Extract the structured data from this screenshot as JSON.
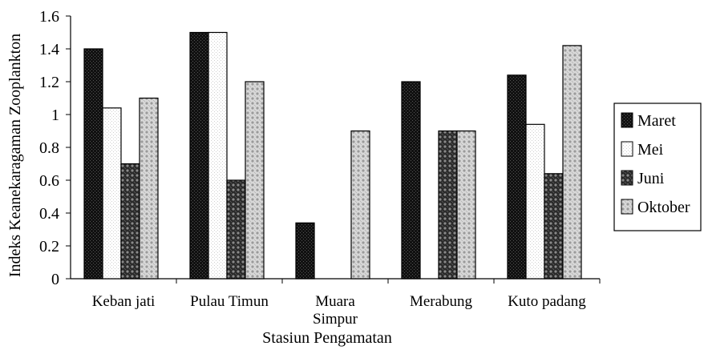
{
  "chart_data": {
    "type": "bar",
    "title": "",
    "xlabel": "Stasiun Pengamatan",
    "ylabel": "Indeks Keanekaragaman Zooplankton",
    "ylim": [
      0,
      1.6
    ],
    "yticks": [
      "0",
      "0.2",
      "0.4",
      "0.6",
      "0.8",
      "1",
      "1.2",
      "1.4",
      "1.6"
    ],
    "categories": [
      [
        "Keban jati"
      ],
      [
        "Pulau Timun"
      ],
      [
        "Muara",
        "Simpur"
      ],
      [
        "Merabung"
      ],
      [
        "Kuto padang"
      ]
    ],
    "series": [
      {
        "name": "Maret",
        "values": [
          1.4,
          1.5,
          0.34,
          1.2,
          1.24
        ]
      },
      {
        "name": "Mei",
        "values": [
          1.04,
          1.5,
          0,
          0,
          0.94
        ]
      },
      {
        "name": "Juni",
        "values": [
          0.7,
          0.6,
          0,
          0.9,
          0.64
        ]
      },
      {
        "name": "Oktober",
        "values": [
          1.1,
          1.2,
          0.9,
          0.9,
          1.42
        ]
      }
    ],
    "legend_position": "right",
    "grid": false
  }
}
